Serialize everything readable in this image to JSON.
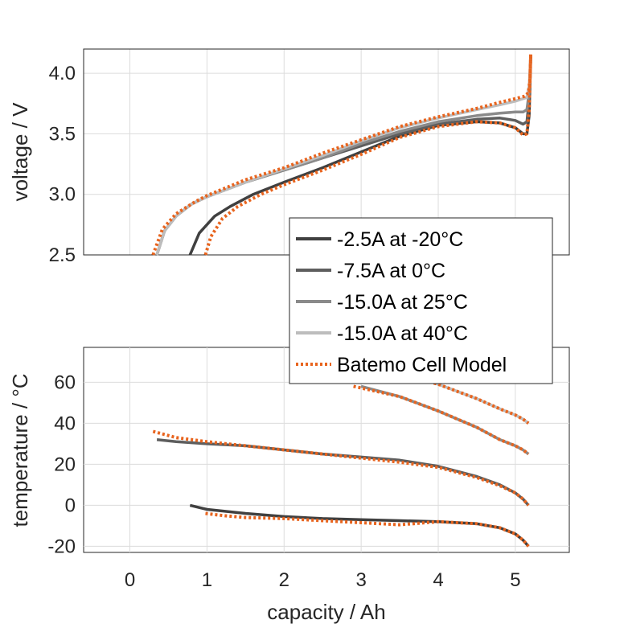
{
  "chart_data": [
    {
      "type": "line",
      "name": "voltage-panel",
      "xlabel": "",
      "ylabel": "voltage / V",
      "xlim": [
        -0.6,
        5.7
      ],
      "ylim": [
        2.5,
        4.2
      ],
      "xticks": [
        0,
        1,
        2,
        3,
        4,
        5
      ],
      "yticks": [
        2.5,
        3.0,
        3.5,
        4.0
      ],
      "ytick_labels": [
        "2.5",
        "3.0",
        "3.5",
        "4.0"
      ],
      "grid": true,
      "series": [
        {
          "name": "-2.5A at -20°C",
          "color": "#404040",
          "dash": "solid",
          "x": [
            0.78,
            0.9,
            1.1,
            1.3,
            1.6,
            2.0,
            2.5,
            3.0,
            3.5,
            4.0,
            4.5,
            4.8,
            5.0,
            5.1,
            5.15,
            5.18,
            5.19,
            5.2
          ],
          "y": [
            2.5,
            2.68,
            2.82,
            2.9,
            3.0,
            3.1,
            3.22,
            3.35,
            3.48,
            3.57,
            3.6,
            3.59,
            3.55,
            3.5,
            3.5,
            3.65,
            3.9,
            4.15
          ]
        },
        {
          "name": "-7.5A at 0°C",
          "color": "#5e5e5e",
          "dash": "solid",
          "x": [
            0.35,
            0.45,
            0.6,
            0.8,
            1.0,
            1.5,
            2.0,
            2.5,
            3.0,
            3.5,
            4.0,
            4.5,
            4.8,
            5.0,
            5.1,
            5.15,
            5.18,
            5.2
          ],
          "y": [
            2.5,
            2.7,
            2.82,
            2.92,
            2.98,
            3.1,
            3.2,
            3.3,
            3.4,
            3.5,
            3.58,
            3.62,
            3.63,
            3.61,
            3.58,
            3.6,
            3.8,
            4.15
          ]
        },
        {
          "name": "-15.0A at 25°C",
          "color": "#8a8a8a",
          "dash": "solid",
          "x": [
            0.35,
            0.45,
            0.6,
            0.8,
            1.0,
            1.5,
            2.0,
            2.5,
            3.0,
            3.5,
            4.0,
            4.5,
            4.8,
            5.0,
            5.1,
            5.15,
            5.18,
            5.2
          ],
          "y": [
            2.5,
            2.7,
            2.82,
            2.92,
            2.98,
            3.1,
            3.2,
            3.3,
            3.42,
            3.52,
            3.6,
            3.65,
            3.67,
            3.68,
            3.68,
            3.7,
            3.85,
            4.15
          ]
        },
        {
          "name": "-15.0A at 40°C",
          "color": "#bdbdbd",
          "dash": "solid",
          "x": [
            0.35,
            0.45,
            0.6,
            0.8,
            1.0,
            1.5,
            2.0,
            2.5,
            3.0,
            3.5,
            4.0,
            4.5,
            4.8,
            5.0,
            5.1,
            5.15,
            5.18,
            5.2
          ],
          "y": [
            2.5,
            2.7,
            2.82,
            2.92,
            2.98,
            3.1,
            3.21,
            3.32,
            3.44,
            3.55,
            3.63,
            3.7,
            3.74,
            3.77,
            3.79,
            3.8,
            3.9,
            4.15
          ]
        },
        {
          "name": "Batemo Cell Model",
          "color": "#e8641e",
          "dash": "dotted",
          "x": [
            0.3,
            0.42,
            0.6,
            0.85,
            1.0,
            1.5,
            2.0,
            2.5,
            3.0,
            3.5,
            4.0,
            4.5,
            4.8,
            5.0,
            5.12,
            5.17,
            5.19,
            5.2
          ],
          "y": [
            2.5,
            2.71,
            2.84,
            2.94,
            2.99,
            3.12,
            3.22,
            3.34,
            3.45,
            3.56,
            3.64,
            3.71,
            3.76,
            3.79,
            3.81,
            3.84,
            3.95,
            4.17
          ]
        },
        {
          "name": "Batemo Cell Model",
          "color": "#e8641e",
          "dash": "dotted",
          "x": [
            0.98,
            1.05,
            1.2,
            1.4,
            1.7,
            2.0,
            2.5,
            3.0,
            3.5,
            4.0,
            4.5,
            4.8,
            5.0,
            5.1,
            5.15,
            5.18,
            5.2
          ],
          "y": [
            2.5,
            2.65,
            2.8,
            2.9,
            3.0,
            3.08,
            3.2,
            3.33,
            3.47,
            3.56,
            3.6,
            3.59,
            3.55,
            3.49,
            3.5,
            3.7,
            4.15
          ]
        }
      ]
    },
    {
      "type": "line",
      "name": "temperature-panel",
      "xlabel": "capacity / Ah",
      "ylabel": "temperature / °C",
      "xlim": [
        -0.6,
        5.7
      ],
      "ylim": [
        -23,
        77
      ],
      "xticks": [
        0,
        1,
        2,
        3,
        4,
        5
      ],
      "yticks": [
        -20,
        0,
        20,
        40,
        60
      ],
      "ytick_labels": [
        "-20",
        "0",
        "20",
        "40",
        "60"
      ],
      "grid": true,
      "series": [
        {
          "name": "-2.5A at -20°C",
          "color": "#404040",
          "dash": "solid",
          "x": [
            0.78,
            1.0,
            1.5,
            2.0,
            2.5,
            3.0,
            3.5,
            4.0,
            4.5,
            4.8,
            5.0,
            5.1,
            5.17
          ],
          "y": [
            0,
            -2,
            -4,
            -5.5,
            -6.5,
            -7,
            -7.5,
            -8,
            -9,
            -11,
            -14,
            -17,
            -20
          ]
        },
        {
          "name": "-7.5A at 0°C",
          "color": "#5e5e5e",
          "dash": "solid",
          "x": [
            0.35,
            0.6,
            1.0,
            1.5,
            2.0,
            2.5,
            3.0,
            3.5,
            4.0,
            4.5,
            4.8,
            5.0,
            5.1,
            5.17
          ],
          "y": [
            32,
            31,
            30,
            29,
            27,
            25,
            23.5,
            22,
            19,
            14,
            10,
            6,
            3,
            0
          ]
        },
        {
          "name": "-15.0A at 25°C",
          "color": "#8a8a8a",
          "dash": "solid",
          "x": [
            3.0,
            3.5,
            4.0,
            4.5,
            4.8,
            5.0,
            5.1,
            5.17
          ],
          "y": [
            58,
            53,
            46,
            38,
            32,
            29,
            27,
            25
          ]
        },
        {
          "name": "-15.0A at 40°C",
          "color": "#bdbdbd",
          "dash": "solid",
          "x": [
            3.75,
            4.0,
            4.5,
            4.8,
            5.0,
            5.1,
            5.17
          ],
          "y": [
            62,
            59,
            52,
            47,
            44,
            42,
            40
          ]
        },
        {
          "name": "Batemo Cell Model",
          "color": "#e8641e",
          "dash": "dotted",
          "x": [
            0.3,
            0.6,
            1.0,
            1.5,
            2.0,
            2.5,
            3.0,
            3.5,
            4.0,
            4.5,
            4.8,
            5.0,
            5.1,
            5.17
          ],
          "y": [
            36,
            33,
            31,
            29,
            27,
            25,
            23,
            21,
            18.5,
            13.5,
            9.5,
            6,
            3,
            0
          ]
        },
        {
          "name": "Batemo Cell Model",
          "color": "#e8641e",
          "dash": "dotted",
          "x": [
            0.98,
            1.2,
            1.5,
            2.0,
            2.5,
            3.0,
            3.5,
            4.0,
            4.5,
            4.8,
            5.0,
            5.1,
            5.17
          ],
          "y": [
            -4,
            -5,
            -6,
            -6.5,
            -7.5,
            -8.5,
            -9.5,
            -8,
            -9,
            -11,
            -14,
            -17,
            -20
          ]
        },
        {
          "name": "Batemo Cell Model",
          "color": "#e8641e",
          "dash": "dotted",
          "x": [
            2.9,
            3.5,
            4.0,
            4.5,
            4.8,
            5.0,
            5.1,
            5.17
          ],
          "y": [
            58,
            53,
            46,
            38,
            32,
            29,
            27,
            25
          ]
        },
        {
          "name": "Batemo Cell Model",
          "color": "#e8641e",
          "dash": "dotted",
          "x": [
            3.7,
            4.0,
            4.5,
            4.8,
            5.0,
            5.1,
            5.17
          ],
          "y": [
            62,
            59,
            52,
            47,
            44,
            42,
            40
          ]
        }
      ]
    }
  ],
  "legend": {
    "position": "center-right",
    "entries": [
      {
        "label": "-2.5A at -20°C",
        "color": "#404040",
        "dash": "solid"
      },
      {
        "label": "-7.5A at 0°C",
        "color": "#5e5e5e",
        "dash": "solid"
      },
      {
        "label": "-15.0A at 25°C",
        "color": "#8a8a8a",
        "dash": "solid"
      },
      {
        "label": "-15.0A at 40°C",
        "color": "#bdbdbd",
        "dash": "solid"
      },
      {
        "label": "Batemo Cell Model",
        "color": "#e8641e",
        "dash": "dotted"
      }
    ]
  }
}
